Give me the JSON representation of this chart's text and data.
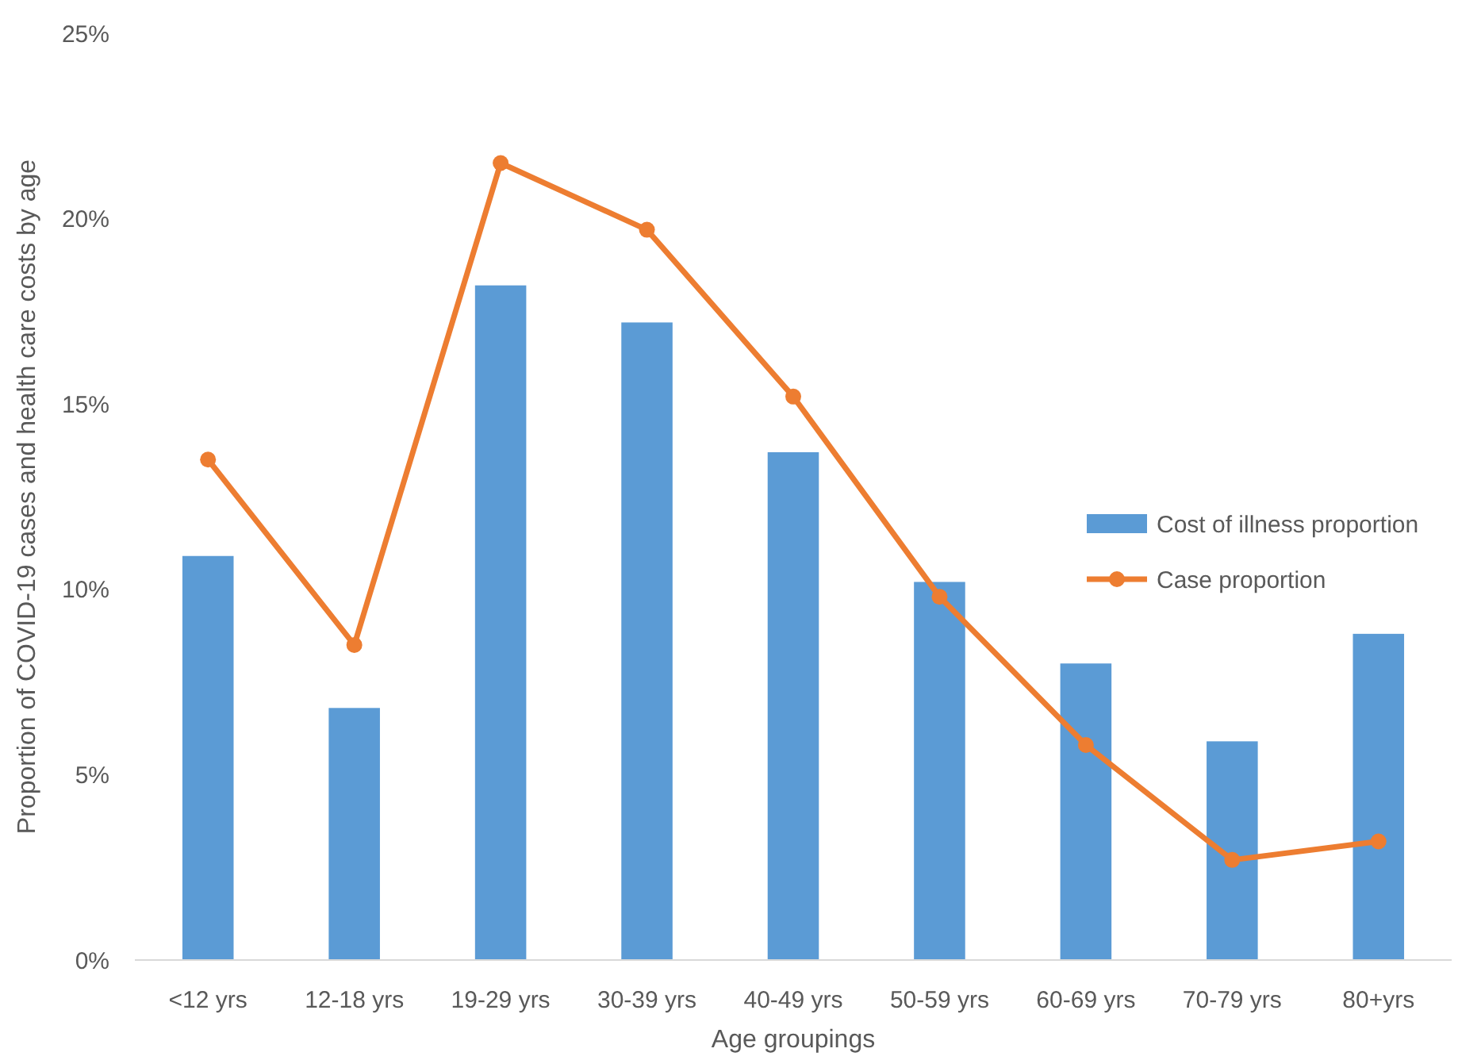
{
  "chart_data": {
    "type": "bar",
    "xlabel": "Age groupings",
    "ylabel": "Proportion of COVID-19 cases and health care costs by age",
    "categories": [
      "<12 yrs",
      "12-18 yrs",
      "19-29 yrs",
      "30-39 yrs",
      "40-49 yrs",
      "50-59 yrs",
      "60-69 yrs",
      "70-79 yrs",
      "80+yrs"
    ],
    "series": [
      {
        "name": "Cost of illness proportion",
        "color": "#5b9bd5",
        "values": [
          10.9,
          6.8,
          18.2,
          17.2,
          13.7,
          10.2,
          8.0,
          5.9,
          8.8
        ]
      },
      {
        "name": "Case proportion",
        "type": "line",
        "color": "#ed7d31",
        "values": [
          13.5,
          8.5,
          21.5,
          19.7,
          15.2,
          9.8,
          5.8,
          2.7,
          3.2
        ]
      }
    ],
    "ylim": [
      0,
      25
    ],
    "yticks": [
      {
        "value": 0,
        "label": "0%"
      },
      {
        "value": 5,
        "label": "5%"
      },
      {
        "value": 10,
        "label": "10%"
      },
      {
        "value": 15,
        "label": "15%"
      },
      {
        "value": 20,
        "label": "20%"
      },
      {
        "value": 25,
        "label": "25%"
      }
    ],
    "marker": "circle",
    "legend": "right",
    "grid": false
  }
}
